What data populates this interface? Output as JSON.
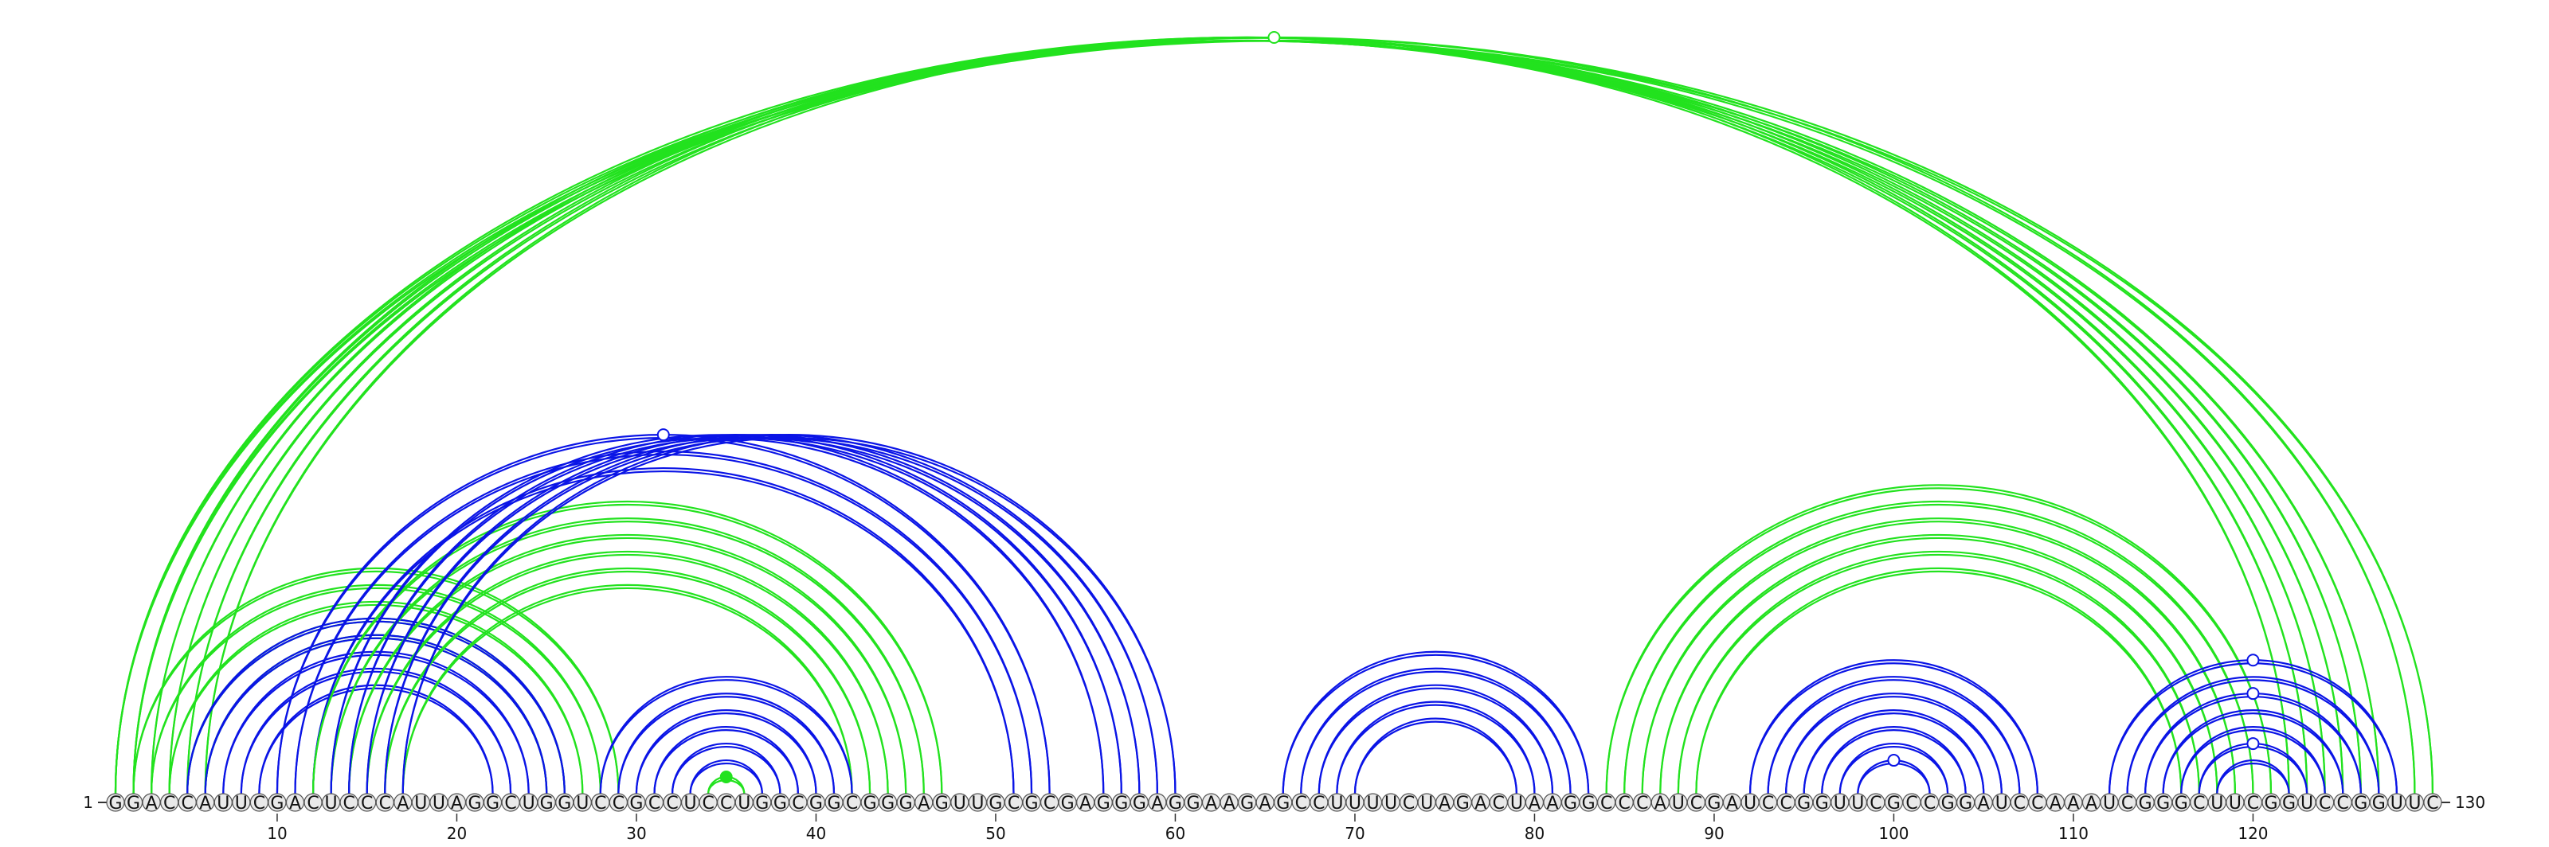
{
  "diagram": {
    "type": "rna-arc-diagram",
    "sequence": "GGACCAUUCGACUCCCAUUAGGCUGGUCCGCCUCCUGGCGGCGGGAGUUGCGCGAGGGAGGAAGAGCCUUUUCUAGACUAAGGCCCAUCGAUCCGGUUCGCCGGAUCCAAAUCGGGCUUCGGUCCGGUUC",
    "start_label": "1",
    "end_label": "130",
    "tick_labels": [
      "10",
      "20",
      "30",
      "40",
      "50",
      "60",
      "70",
      "80",
      "90",
      "100",
      "110",
      "120"
    ],
    "colors": {
      "blue": "#0a14e6",
      "green": "#22e21e",
      "circle_fill": "#e9e9e9"
    },
    "arc_groups": [
      {
        "color": "green",
        "pairs": [
          [
            1,
            127
          ],
          [
            2,
            126
          ],
          [
            3,
            125
          ],
          [
            4,
            124
          ],
          [
            5,
            123
          ],
          [
            6,
            122
          ]
        ]
      },
      {
        "color": "green",
        "pairs": [
          [
            1,
            130
          ],
          [
            2,
            129
          ]
        ]
      },
      {
        "color": "green",
        "pairs": [
          [
            2,
            29
          ],
          [
            3,
            28
          ],
          [
            4,
            27
          ],
          [
            5,
            26
          ],
          [
            6,
            25
          ]
        ]
      },
      {
        "color": "blue",
        "pairs": [
          [
            5,
            26
          ],
          [
            6,
            25
          ],
          [
            7,
            24
          ],
          [
            8,
            23
          ],
          [
            9,
            22
          ]
        ]
      },
      {
        "color": "blue",
        "pairs": [
          [
            10,
            53
          ],
          [
            11,
            52
          ],
          [
            12,
            51
          ]
        ]
      },
      {
        "color": "green",
        "pairs": [
          [
            12,
            47
          ],
          [
            13,
            46
          ],
          [
            14,
            45
          ],
          [
            15,
            44
          ],
          [
            16,
            43
          ],
          [
            17,
            42
          ]
        ]
      },
      {
        "color": "blue",
        "pairs": [
          [
            13,
            56
          ],
          [
            14,
            57
          ],
          [
            15,
            58
          ],
          [
            16,
            59
          ],
          [
            17,
            60
          ]
        ]
      },
      {
        "color": "blue",
        "pairs": [
          [
            28,
            42
          ],
          [
            29,
            41
          ],
          [
            30,
            40
          ],
          [
            31,
            39
          ],
          [
            32,
            38
          ],
          [
            33,
            37
          ]
        ]
      },
      {
        "color": "green",
        "pairs": [
          [
            34,
            36
          ]
        ]
      },
      {
        "color": "blue",
        "pairs": [
          [
            66,
            83
          ],
          [
            67,
            82
          ],
          [
            68,
            81
          ],
          [
            69,
            80
          ],
          [
            70,
            79
          ]
        ]
      },
      {
        "color": "green",
        "pairs": [
          [
            84,
            121
          ],
          [
            85,
            120
          ],
          [
            86,
            119
          ],
          [
            87,
            118
          ],
          [
            88,
            117
          ],
          [
            89,
            116
          ]
        ]
      },
      {
        "color": "blue",
        "pairs": [
          [
            92,
            108
          ],
          [
            93,
            107
          ],
          [
            94,
            106
          ],
          [
            95,
            105
          ],
          [
            96,
            104
          ],
          [
            97,
            103
          ],
          [
            98,
            102
          ]
        ]
      },
      {
        "color": "blue",
        "pairs": [
          [
            112,
            128
          ],
          [
            113,
            127
          ],
          [
            114,
            126
          ],
          [
            115,
            125
          ],
          [
            116,
            124
          ],
          [
            117,
            123
          ],
          [
            118,
            122
          ]
        ]
      }
    ]
  }
}
